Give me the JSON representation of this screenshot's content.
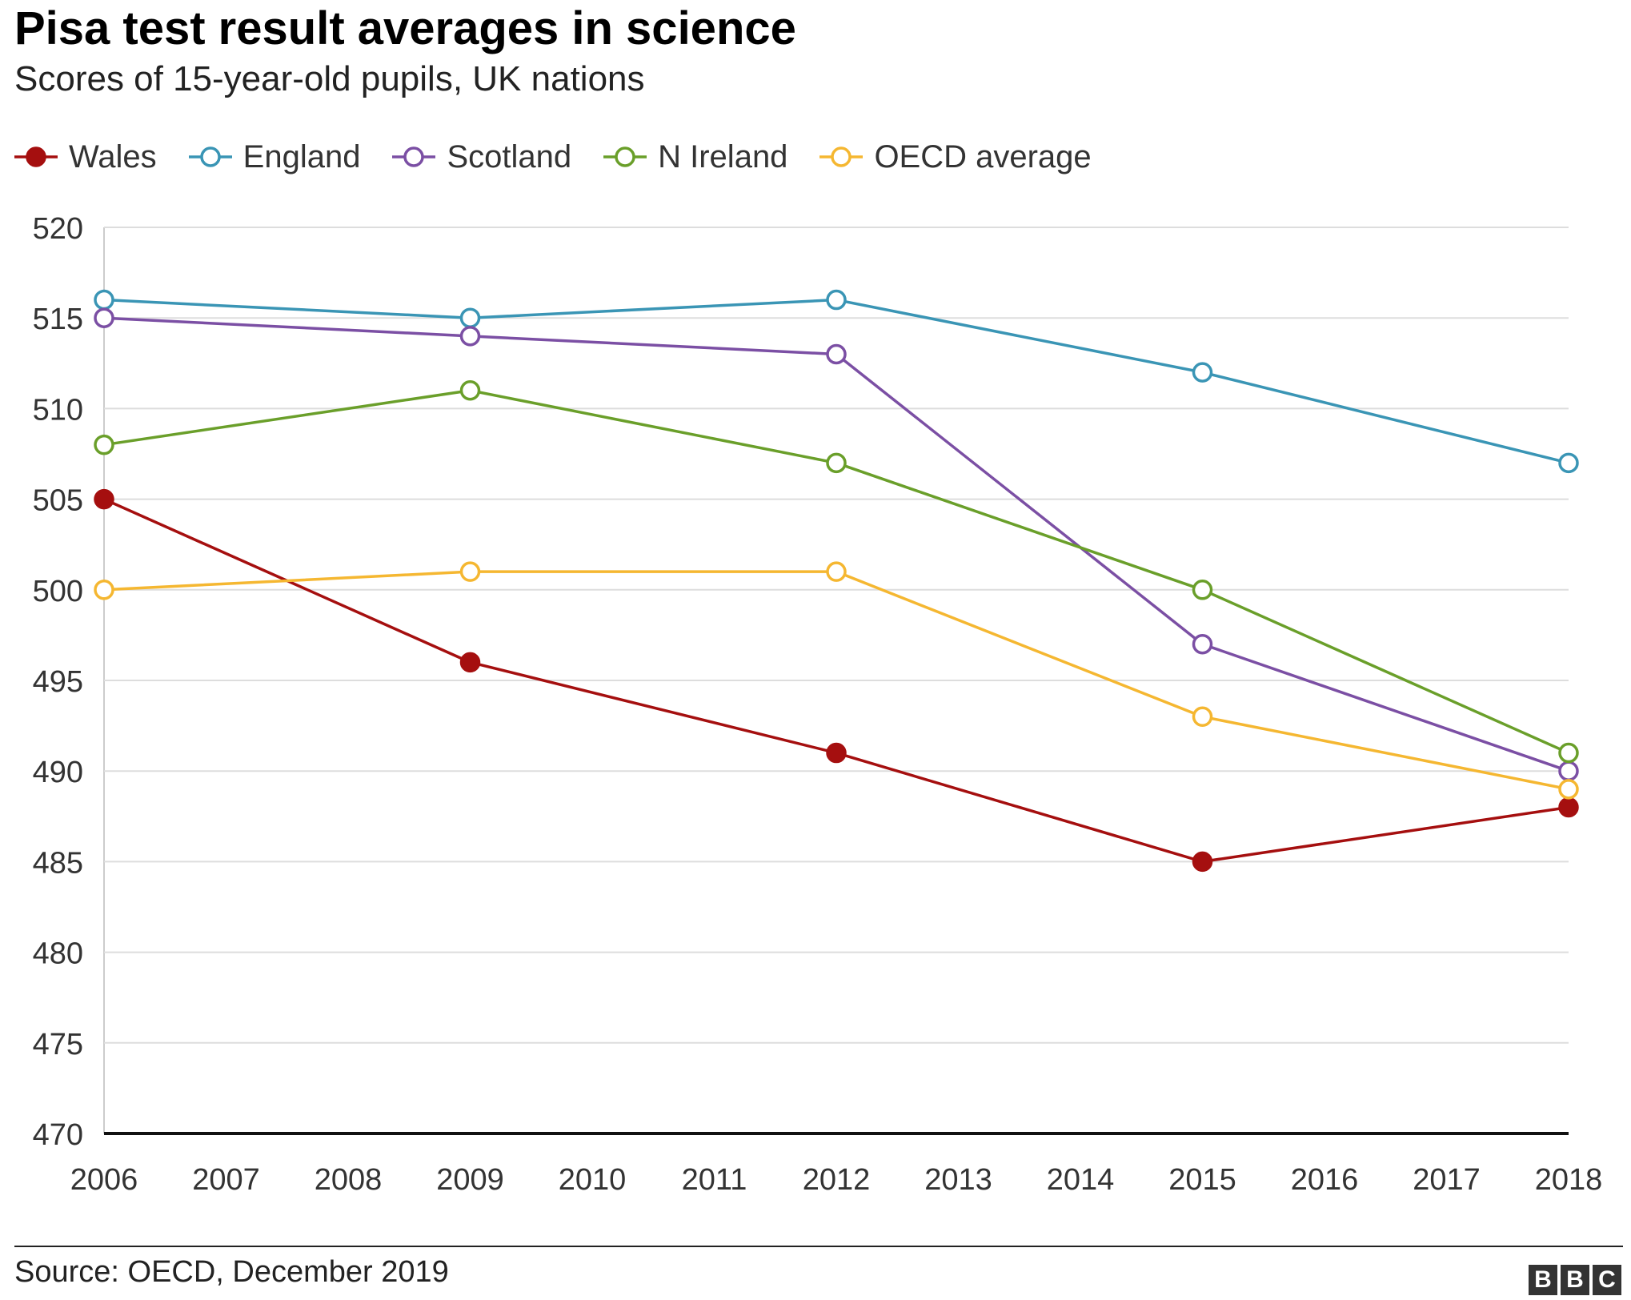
{
  "header": {
    "title": "Pisa test result averages in science",
    "subtitle": "Scores of 15-year-old pupils, UK nations"
  },
  "footer": {
    "source": "Source: OECD, December 2019",
    "logo_letters": [
      "B",
      "B",
      "C"
    ]
  },
  "chart_data": {
    "type": "line",
    "title": "Pisa test result averages in science",
    "subtitle": "Scores of 15-year-old pupils, UK nations",
    "xlabel": "",
    "ylabel": "",
    "xlim": [
      2006,
      2018
    ],
    "ylim": [
      470,
      520
    ],
    "x_ticks": [
      2006,
      2007,
      2008,
      2009,
      2010,
      2011,
      2012,
      2013,
      2014,
      2015,
      2016,
      2017,
      2018
    ],
    "y_ticks": [
      470,
      475,
      480,
      485,
      490,
      495,
      500,
      505,
      510,
      515,
      520
    ],
    "grid": true,
    "legend_position": "top-left",
    "x": [
      2006,
      2009,
      2012,
      2015,
      2018
    ],
    "series": [
      {
        "name": "Wales",
        "color": "#a50f0f",
        "filled": true,
        "values": [
          505,
          496,
          491,
          485,
          488
        ]
      },
      {
        "name": "England",
        "color": "#3a95b5",
        "filled": false,
        "values": [
          516,
          515,
          516,
          512,
          507
        ]
      },
      {
        "name": "Scotland",
        "color": "#7b4fa4",
        "filled": false,
        "values": [
          515,
          514,
          513,
          497,
          490
        ]
      },
      {
        "name": "N Ireland",
        "color": "#6a9f2a",
        "filled": false,
        "values": [
          508,
          511,
          507,
          500,
          491
        ]
      },
      {
        "name": "OECD average",
        "color": "#f5b731",
        "filled": false,
        "values": [
          500,
          501,
          501,
          493,
          489
        ]
      }
    ]
  }
}
